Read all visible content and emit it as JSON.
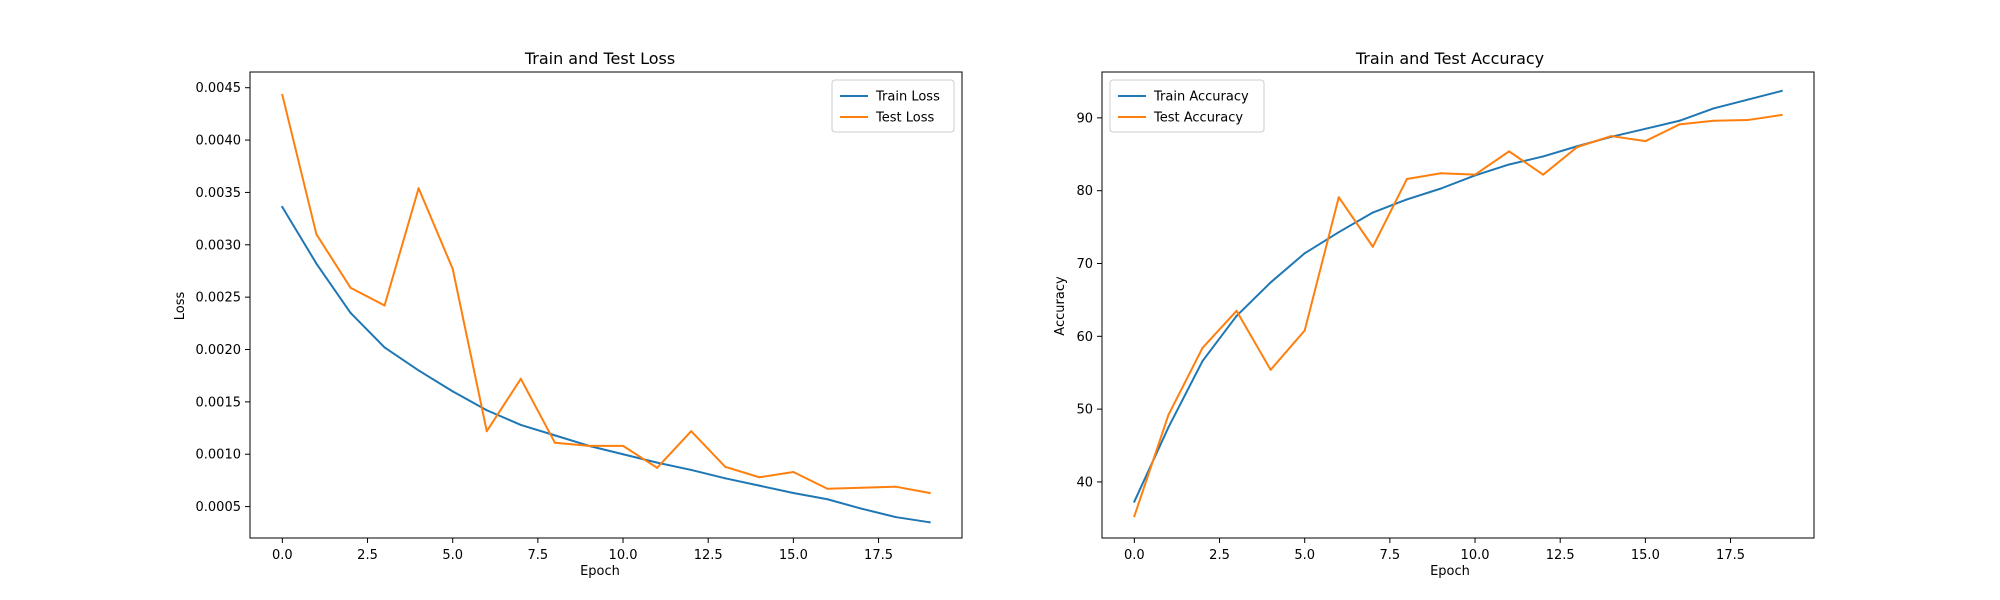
{
  "colors": {
    "train": "#1f77b4",
    "test": "#ff7f0e",
    "axis": "#000000",
    "legend_border": "#cccccc"
  },
  "chart_data": [
    {
      "type": "line",
      "title": "Train and Test Loss",
      "xlabel": "Epoch",
      "ylabel": "Loss",
      "xlim": [
        -0.95,
        19.95
      ],
      "ylim": [
        0.0002,
        0.00465
      ],
      "xticks": [
        0.0,
        2.5,
        5.0,
        7.5,
        10.0,
        12.5,
        15.0,
        17.5
      ],
      "xtick_labels": [
        "0.0",
        "2.5",
        "5.0",
        "7.5",
        "10.0",
        "12.5",
        "15.0",
        "17.5"
      ],
      "yticks": [
        0.0005,
        0.001,
        0.0015,
        0.002,
        0.0025,
        0.003,
        0.0035,
        0.004,
        0.0045
      ],
      "ytick_labels": [
        "0.0005",
        "0.0010",
        "0.0015",
        "0.0020",
        "0.0025",
        "0.0030",
        "0.0035",
        "0.0040",
        "0.0045"
      ],
      "grid": false,
      "legend_position": "upper right",
      "x": [
        0,
        1,
        2,
        3,
        4,
        5,
        6,
        7,
        8,
        9,
        10,
        11,
        12,
        13,
        14,
        15,
        16,
        17,
        18,
        19
      ],
      "series": [
        {
          "name": "Train Loss",
          "color_key": "train",
          "values": [
            0.00336,
            0.00282,
            0.00235,
            0.00202,
            0.0018,
            0.0016,
            0.00142,
            0.00128,
            0.00118,
            0.00108,
            0.001,
            0.00092,
            0.00085,
            0.00077,
            0.0007,
            0.00063,
            0.00057,
            0.00048,
            0.0004,
            0.00035
          ]
        },
        {
          "name": "Test Loss",
          "color_key": "test",
          "values": [
            0.00443,
            0.0031,
            0.00259,
            0.00242,
            0.00354,
            0.00277,
            0.00122,
            0.00172,
            0.00111,
            0.00108,
            0.00108,
            0.00087,
            0.00122,
            0.00088,
            0.00078,
            0.00083,
            0.00067,
            0.00068,
            0.00069,
            0.00063
          ]
        }
      ]
    },
    {
      "type": "line",
      "title": "Train and Test Accuracy",
      "xlabel": "Epoch",
      "ylabel": "Accuracy",
      "xlim": [
        -0.95,
        19.95
      ],
      "ylim": [
        32.3,
        96.3
      ],
      "xticks": [
        0.0,
        2.5,
        5.0,
        7.5,
        10.0,
        12.5,
        15.0,
        17.5
      ],
      "xtick_labels": [
        "0.0",
        "2.5",
        "5.0",
        "7.5",
        "10.0",
        "12.5",
        "15.0",
        "17.5"
      ],
      "yticks": [
        40,
        50,
        60,
        70,
        80,
        90
      ],
      "ytick_labels": [
        "40",
        "50",
        "60",
        "70",
        "80",
        "90"
      ],
      "grid": false,
      "legend_position": "upper left",
      "x": [
        0,
        1,
        2,
        3,
        4,
        5,
        6,
        7,
        8,
        9,
        10,
        11,
        12,
        13,
        14,
        15,
        16,
        17,
        18,
        19
      ],
      "series": [
        {
          "name": "Train Accuracy",
          "color_key": "train",
          "values": [
            37.3,
            47.5,
            56.6,
            62.8,
            67.4,
            71.4,
            74.3,
            77.0,
            78.8,
            80.3,
            82.1,
            83.6,
            84.7,
            86.1,
            87.4,
            88.5,
            89.6,
            91.3,
            92.5,
            93.7
          ]
        },
        {
          "name": "Test Accuracy",
          "color_key": "test",
          "values": [
            35.3,
            49.2,
            58.4,
            63.5,
            55.4,
            60.8,
            79.1,
            72.3,
            81.6,
            82.4,
            82.2,
            85.4,
            82.2,
            86.0,
            87.5,
            86.8,
            89.1,
            89.6,
            89.7,
            90.4
          ]
        }
      ]
    }
  ]
}
